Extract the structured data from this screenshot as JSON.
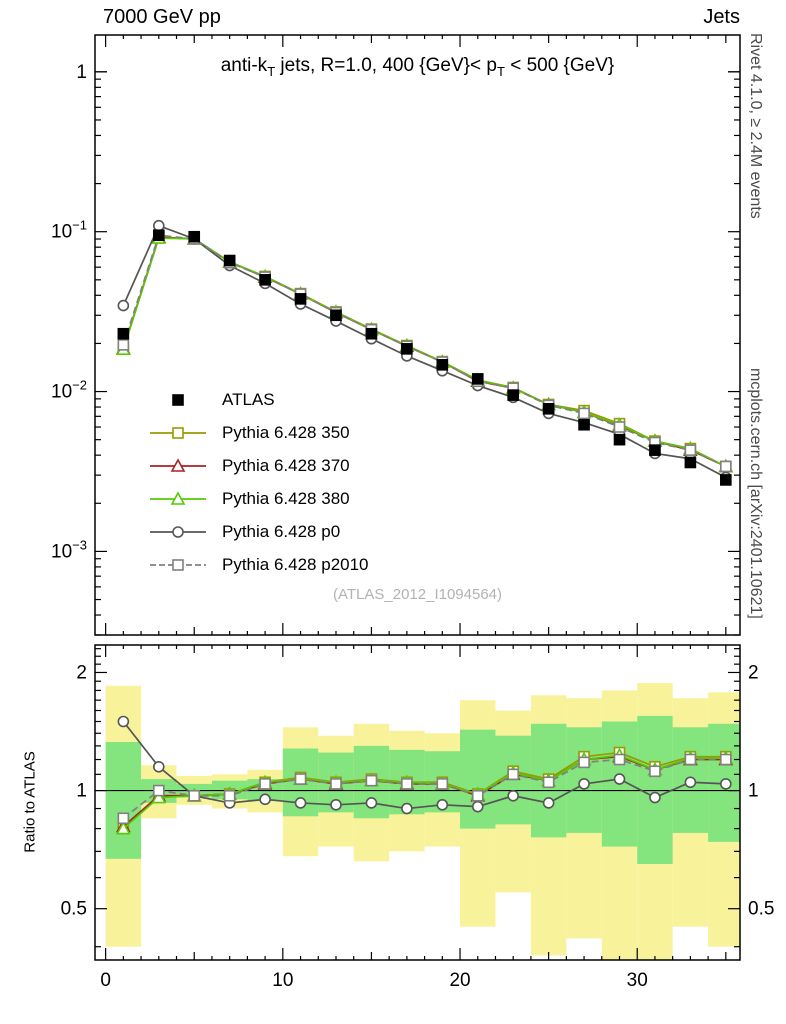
{
  "header": {
    "left": "7000 GeV pp",
    "right": "Jets"
  },
  "title": {
    "part1": "anti-k",
    "sub1": "T",
    "part2": " jets, R=1.0, 400 {GeV}< p",
    "sub2": "T",
    "part3": " < 500 {GeV}"
  },
  "watermark": "(ATLAS_2012_I1094564)",
  "ratio_axis_label": "Ratio to ATLAS",
  "side_notes": {
    "top": "Rivet 4.1.0, ≥ 2.4M events",
    "bottom": "mcplots.cern.ch [arXiv:2401.10621]"
  },
  "chart_data": {
    "type": "line",
    "x": [
      1,
      3,
      5,
      7,
      9,
      11,
      13,
      15,
      17,
      19,
      21,
      23,
      25,
      27,
      29,
      31,
      33,
      35
    ],
    "xlim": [
      -0.6,
      35.8
    ],
    "xticks": [
      0,
      10,
      20,
      30
    ],
    "main_yticks": [
      {
        "v": 1,
        "label": "1"
      },
      {
        "v": 0.1,
        "base": "10",
        "exp": "−1"
      },
      {
        "v": 0.01,
        "base": "10",
        "exp": "−2"
      },
      {
        "v": 0.001,
        "base": "10",
        "exp": "−3"
      }
    ],
    "ratio_yticks": [
      {
        "v": 2,
        "label": "2"
      },
      {
        "v": 1,
        "label": "1"
      },
      {
        "v": 0.5,
        "label": "0.5"
      }
    ],
    "main_panel": {
      "yscale": "log",
      "ylim": [
        0.0003,
        1.7
      ],
      "series": [
        {
          "name": "ATLAS",
          "color": "#000000",
          "marker": "square-filled",
          "line": "none",
          "values": [
            0.023,
            0.095,
            0.093,
            0.066,
            0.05,
            0.038,
            0.03,
            0.023,
            0.0185,
            0.0147,
            0.012,
            0.0095,
            0.0078,
            0.0062,
            0.005,
            0.0043,
            0.0036,
            0.0028
          ]
        },
        {
          "name": "Pythia 6.428 350",
          "color": "#999900",
          "marker": "square-open",
          "line": "solid",
          "values": [
            0.0184,
            0.0922,
            0.0902,
            0.0647,
            0.0525,
            0.041,
            0.0315,
            0.0246,
            0.0194,
            0.0154,
            0.0118,
            0.0106,
            0.0083,
            0.0076,
            0.0063,
            0.0049,
            0.0044,
            0.0034
          ]
        },
        {
          "name": "Pythia 6.428 370",
          "color": "#aa2222",
          "marker": "triangle-open",
          "line": "solid",
          "values": [
            0.0186,
            0.0922,
            0.0902,
            0.0647,
            0.052,
            0.0407,
            0.0312,
            0.0244,
            0.0192,
            0.0153,
            0.0116,
            0.0105,
            0.0083,
            0.0074,
            0.0061,
            0.0049,
            0.0043,
            0.0034
          ]
        },
        {
          "name": "Pythia 6.428 380",
          "color": "#55cc00",
          "marker": "triangle-open",
          "line": "solid",
          "values": [
            0.0184,
            0.0912,
            0.0902,
            0.0647,
            0.0525,
            0.0407,
            0.0315,
            0.0244,
            0.0194,
            0.0153,
            0.0118,
            0.0105,
            0.0083,
            0.0074,
            0.0062,
            0.0049,
            0.0044,
            0.0034
          ]
        },
        {
          "name": "Pythia 6.428 p0",
          "color": "#555555",
          "marker": "circle-open",
          "line": "solid",
          "values": [
            0.0345,
            0.109,
            0.0902,
            0.0614,
            0.0475,
            0.0353,
            0.0276,
            0.0214,
            0.0167,
            0.0135,
            0.0109,
            0.0092,
            0.0073,
            0.0064,
            0.0054,
            0.0041,
            0.0038,
            0.0029
          ]
        },
        {
          "name": "Pythia 6.428 p2010",
          "color": "#808080",
          "marker": "square-open",
          "line": "dashed",
          "values": [
            0.0196,
            0.095,
            0.0902,
            0.064,
            0.052,
            0.0407,
            0.0312,
            0.0244,
            0.0192,
            0.0153,
            0.0116,
            0.0105,
            0.0082,
            0.0073,
            0.006,
            0.0048,
            0.0043,
            0.0034
          ]
        }
      ]
    },
    "ratio_panel": {
      "yscale": "log",
      "ylim": [
        0.37,
        2.35
      ],
      "reference": 1,
      "band_colors": {
        "yellow": "#f8f39b",
        "green": "#84e47e"
      },
      "bands": {
        "halfwidth": 1,
        "x": [
          1,
          3,
          5,
          7,
          9,
          11,
          13,
          15,
          17,
          19,
          21,
          23,
          25,
          27,
          29,
          31,
          33,
          35
        ],
        "yellow": [
          [
            0.4,
            1.85
          ],
          [
            0.85,
            1.16
          ],
          [
            0.92,
            1.09
          ],
          [
            0.9,
            1.1
          ],
          [
            0.88,
            1.13
          ],
          [
            0.68,
            1.45
          ],
          [
            0.72,
            1.38
          ],
          [
            0.66,
            1.48
          ],
          [
            0.7,
            1.42
          ],
          [
            0.72,
            1.4
          ],
          [
            0.45,
            1.7
          ],
          [
            0.55,
            1.6
          ],
          [
            0.38,
            1.75
          ],
          [
            0.42,
            1.72
          ],
          [
            0.35,
            1.8
          ],
          [
            0.3,
            1.88
          ],
          [
            0.45,
            1.72
          ],
          [
            0.4,
            1.78
          ]
        ],
        "green": [
          [
            0.67,
            1.33
          ],
          [
            0.93,
            1.07
          ],
          [
            0.96,
            1.04
          ],
          [
            0.95,
            1.06
          ],
          [
            0.94,
            1.07
          ],
          [
            0.86,
            1.28
          ],
          [
            0.88,
            1.25
          ],
          [
            0.85,
            1.3
          ],
          [
            0.87,
            1.27
          ],
          [
            0.88,
            1.26
          ],
          [
            0.8,
            1.43
          ],
          [
            0.82,
            1.38
          ],
          [
            0.76,
            1.48
          ],
          [
            0.78,
            1.45
          ],
          [
            0.72,
            1.5
          ],
          [
            0.65,
            1.55
          ],
          [
            0.78,
            1.45
          ],
          [
            0.74,
            1.48
          ]
        ]
      },
      "series": [
        {
          "name": "Pythia 6.428 350",
          "color": "#999900",
          "marker": "square-open",
          "line": "solid",
          "values": [
            0.8,
            0.97,
            0.97,
            0.98,
            1.05,
            1.08,
            1.05,
            1.07,
            1.05,
            1.05,
            0.98,
            1.12,
            1.07,
            1.22,
            1.25,
            1.15,
            1.22,
            1.22
          ]
        },
        {
          "name": "Pythia 6.428 370",
          "color": "#aa2222",
          "marker": "triangle-open",
          "line": "solid",
          "values": [
            0.81,
            0.97,
            0.97,
            0.98,
            1.04,
            1.07,
            1.04,
            1.06,
            1.04,
            1.04,
            0.97,
            1.1,
            1.06,
            1.2,
            1.22,
            1.13,
            1.2,
            1.2
          ]
        },
        {
          "name": "Pythia 6.428 380",
          "color": "#55cc00",
          "marker": "triangle-open",
          "line": "solid",
          "values": [
            0.8,
            0.96,
            0.97,
            0.98,
            1.05,
            1.07,
            1.05,
            1.06,
            1.05,
            1.04,
            0.98,
            1.11,
            1.06,
            1.2,
            1.23,
            1.13,
            1.21,
            1.21
          ]
        },
        {
          "name": "Pythia 6.428 p0",
          "color": "#555555",
          "marker": "circle-open",
          "line": "solid",
          "values": [
            1.5,
            1.15,
            0.97,
            0.93,
            0.95,
            0.93,
            0.92,
            0.93,
            0.9,
            0.92,
            0.91,
            0.97,
            0.93,
            1.04,
            1.07,
            0.96,
            1.05,
            1.04
          ]
        },
        {
          "name": "Pythia 6.428 p2010",
          "color": "#808080",
          "marker": "square-open",
          "line": "dashed",
          "values": [
            0.85,
            1.0,
            0.97,
            0.97,
            1.04,
            1.07,
            1.04,
            1.06,
            1.04,
            1.04,
            0.97,
            1.1,
            1.05,
            1.18,
            1.2,
            1.12,
            1.2,
            1.2
          ]
        }
      ]
    }
  }
}
